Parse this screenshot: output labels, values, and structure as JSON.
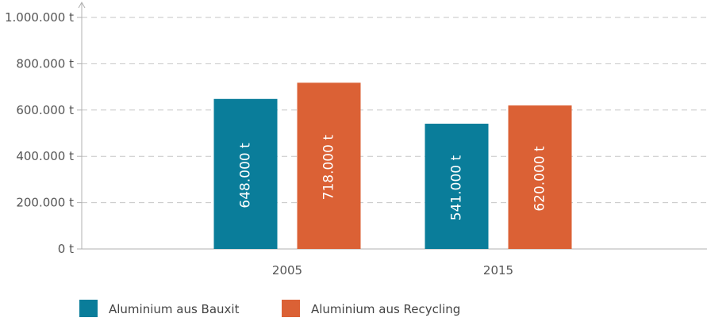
{
  "chart_data": {
    "type": "bar",
    "title": "",
    "xlabel": "",
    "ylabel": "",
    "categories": [
      "2005",
      "2015"
    ],
    "series": [
      {
        "name": "Aluminium aus Bauxit",
        "color": "#0a7d9a",
        "values": [
          648000,
          541000
        ],
        "labels": [
          "648.000 t",
          "541.000 t"
        ]
      },
      {
        "name": "Aluminium aus Recycling",
        "color": "#db6135",
        "values": [
          718000,
          620000
        ],
        "labels": [
          "718.000 t",
          "620.000 t"
        ]
      }
    ],
    "ylim": [
      0,
      1000000
    ],
    "yticks": [
      {
        "value": 0,
        "label": "0 t"
      },
      {
        "value": 200000,
        "label": "200.000 t"
      },
      {
        "value": 400000,
        "label": "400.000 t"
      },
      {
        "value": 600000,
        "label": "600.000 t"
      },
      {
        "value": 800000,
        "label": "800.000 t"
      },
      {
        "value": 1000000,
        "label": "1.000.000 t"
      }
    ],
    "grid": true,
    "legend_position": "bottom-left"
  }
}
